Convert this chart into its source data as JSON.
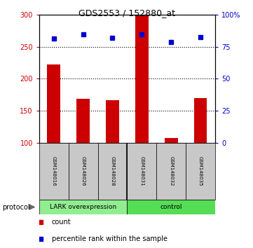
{
  "title": "GDS2553 / 152880_at",
  "samples": [
    "GSM148016",
    "GSM148026",
    "GSM148028",
    "GSM148031",
    "GSM148032",
    "GSM148035"
  ],
  "bar_values": [
    222,
    169,
    166,
    299,
    107,
    170
  ],
  "dot_values": [
    263,
    270,
    264,
    270,
    257,
    265
  ],
  "ylim_left": [
    100,
    300
  ],
  "ylim_right": [
    0,
    100
  ],
  "yticks_left": [
    100,
    150,
    200,
    250,
    300
  ],
  "ytick_labels_left": [
    "100",
    "150",
    "200",
    "250",
    "300"
  ],
  "yticks_right": [
    0,
    25,
    50,
    75,
    100
  ],
  "ytick_labels_right": [
    "0",
    "25",
    "50",
    "75",
    "100%"
  ],
  "grid_values": [
    150,
    200,
    250
  ],
  "bar_color": "#cc0000",
  "dot_color": "#0000cc",
  "group1_label": "LARK overexpression",
  "group2_label": "control",
  "group1_color": "#90ee90",
  "group2_color": "#55dd55",
  "group_split": 3,
  "protocol_label": "protocol",
  "legend_count_label": "count",
  "legend_percentile_label": "percentile rank within the sample",
  "bar_color_legend": "#cc0000",
  "dot_color_legend": "#0000cc",
  "left_tick_color": "#cc0000",
  "right_tick_color": "#0000cc",
  "sample_box_color": "#c8c8c8",
  "title_fontsize": 9,
  "tick_fontsize": 7,
  "sample_fontsize": 5,
  "legend_fontsize": 7,
  "protocol_fontsize": 7,
  "bar_width": 0.45
}
